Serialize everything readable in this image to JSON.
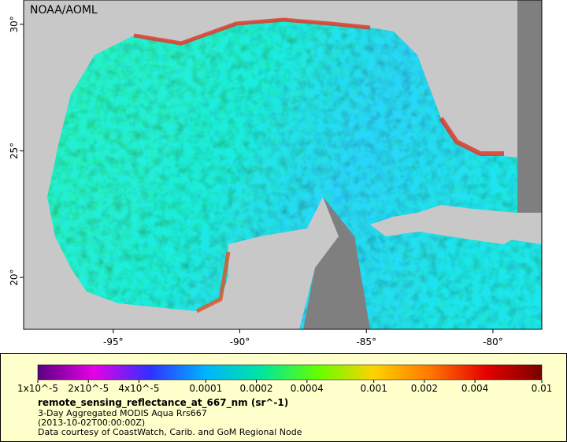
{
  "map": {
    "credit": "NOAA/AOML",
    "xlim": [
      -98.54,
      -78.07
    ],
    "ylim": [
      17.95,
      30.96
    ],
    "xticks": [
      {
        "value": -95,
        "label": "-95°"
      },
      {
        "value": -90,
        "label": "-90°"
      },
      {
        "value": -85,
        "label": "-85°"
      },
      {
        "value": -80,
        "label": "-80°"
      }
    ],
    "yticks": [
      {
        "value": 20,
        "label": "20°"
      },
      {
        "value": 25,
        "label": "25°"
      },
      {
        "value": 30,
        "label": "30°"
      }
    ]
  },
  "colorbar": {
    "lim": [
      1e-05,
      0.01
    ],
    "log": true,
    "colors": [
      "#5a0080",
      "#e600e6",
      "#3030ff",
      "#00b4ff",
      "#00e6a0",
      "#64ff00",
      "#ffd200",
      "#ff7800",
      "#e60000",
      "#7a0000"
    ],
    "ticks": [
      {
        "value": 1e-05,
        "label": "1x10^-5"
      },
      {
        "value": 2e-05,
        "label": "2x10^-5"
      },
      {
        "value": 4e-05,
        "label": "4x10^-5"
      },
      0.0001,
      0.0002,
      0.0004,
      0.001,
      0.002,
      0.004,
      0.01
    ]
  },
  "variable": "remote_sensing_reflectance_at_667_nm (sr^-1)",
  "description": "3-Day Aggregated MODIS Aqua Rrs667",
  "date": "(2013-10-02T00:00:00Z)",
  "source": "Data courtesy of CoastWatch, Carib. and GoM Regional Node"
}
